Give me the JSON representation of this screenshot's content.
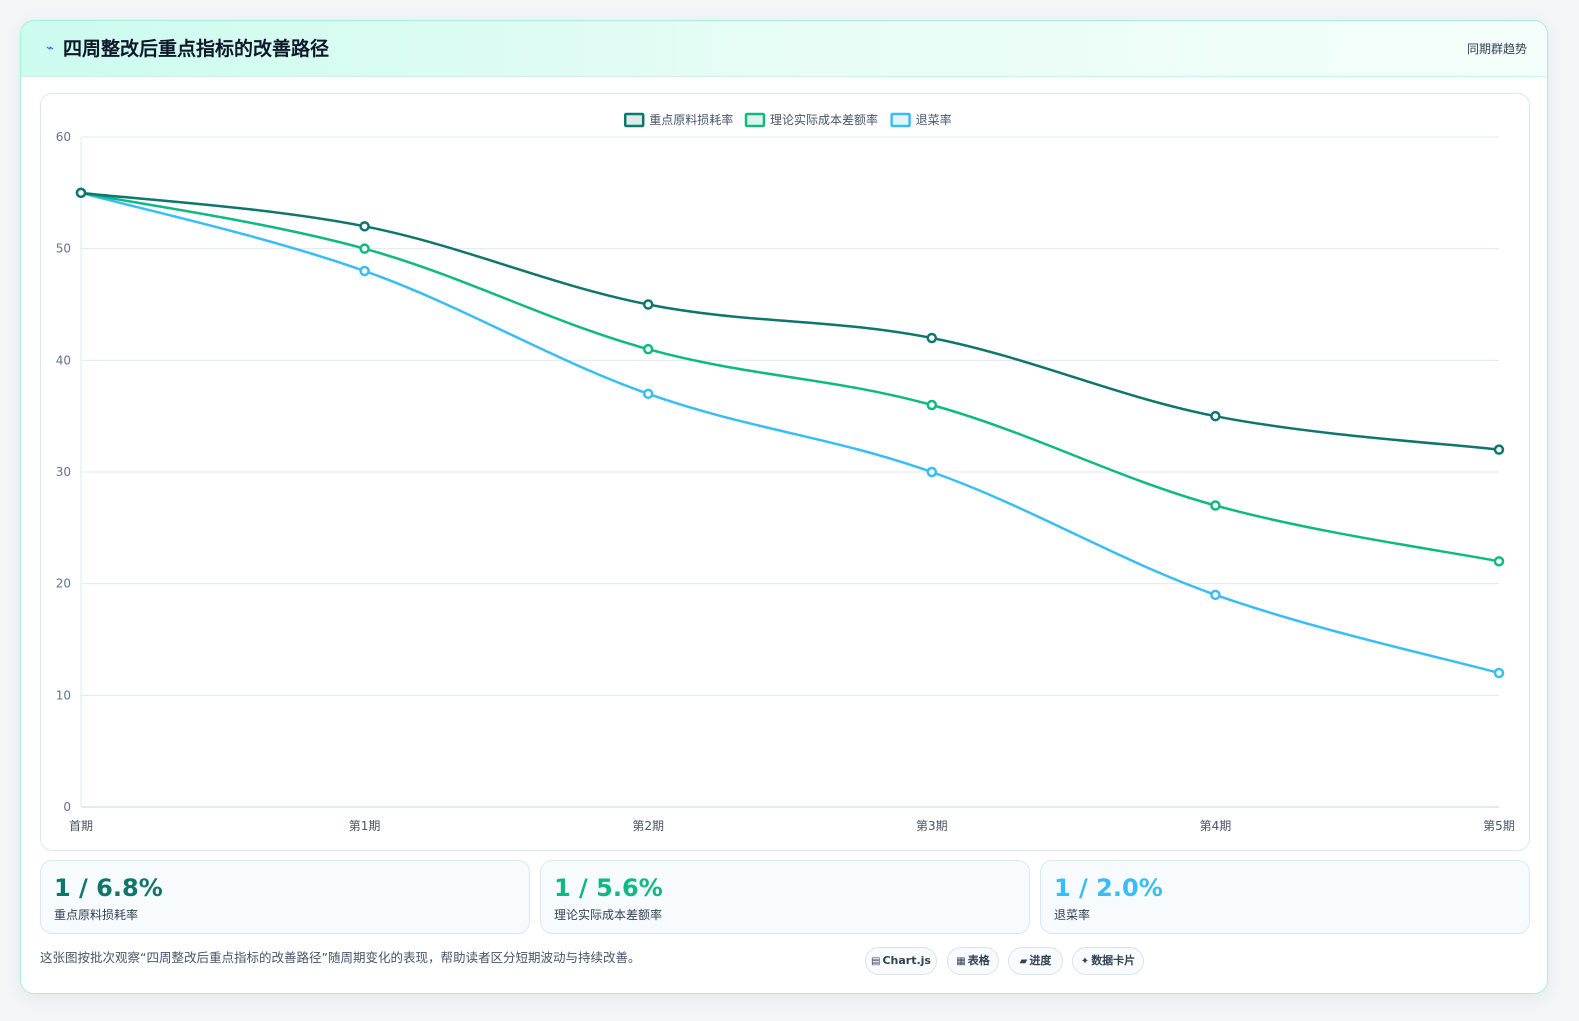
{
  "header": {
    "title_icon": "⌁",
    "title": "四周整改后重点指标的改善路径",
    "right_label": "同期群趋势"
  },
  "chart_data": {
    "type": "line",
    "categories": [
      "首期",
      "第1期",
      "第2期",
      "第3期",
      "第4期",
      "第5期"
    ],
    "series": [
      {
        "name": "重点原料损耗率",
        "values": [
          55,
          52,
          45,
          42,
          35,
          32
        ],
        "color": "#0f766e"
      },
      {
        "name": "理论实际成本差额率",
        "values": [
          55,
          50,
          41,
          36,
          27,
          22
        ],
        "color": "#10b981"
      },
      {
        "name": "退菜率",
        "values": [
          55,
          48,
          37,
          30,
          19,
          12
        ],
        "color": "#38bdf8"
      }
    ],
    "ylim": [
      0,
      60
    ],
    "yticks": [
      0,
      10,
      20,
      30,
      40,
      50,
      60
    ],
    "grid": true,
    "legend": "top-center",
    "xlabel": "",
    "ylabel": ""
  },
  "stats": [
    {
      "value": "1 / 6.8%",
      "label": "重点原料损耗率",
      "color": "#0f766e"
    },
    {
      "value": "1 / 5.6%",
      "label": "理论实际成本差额率",
      "color": "#10b981"
    },
    {
      "value": "1 / 2.0%",
      "label": "退菜率",
      "color": "#38bdf8"
    }
  ],
  "footnote": "这张图按批次观察“四周整改后重点指标的改善路径”随周期变化的表现，帮助读者区分短期波动与持续改善。",
  "chips": [
    {
      "icon": "▤",
      "label": "Chart.js"
    },
    {
      "icon": "▦",
      "label": "表格"
    },
    {
      "icon": "▰",
      "label": "进度"
    },
    {
      "icon": "✦",
      "label": "数据卡片"
    }
  ]
}
